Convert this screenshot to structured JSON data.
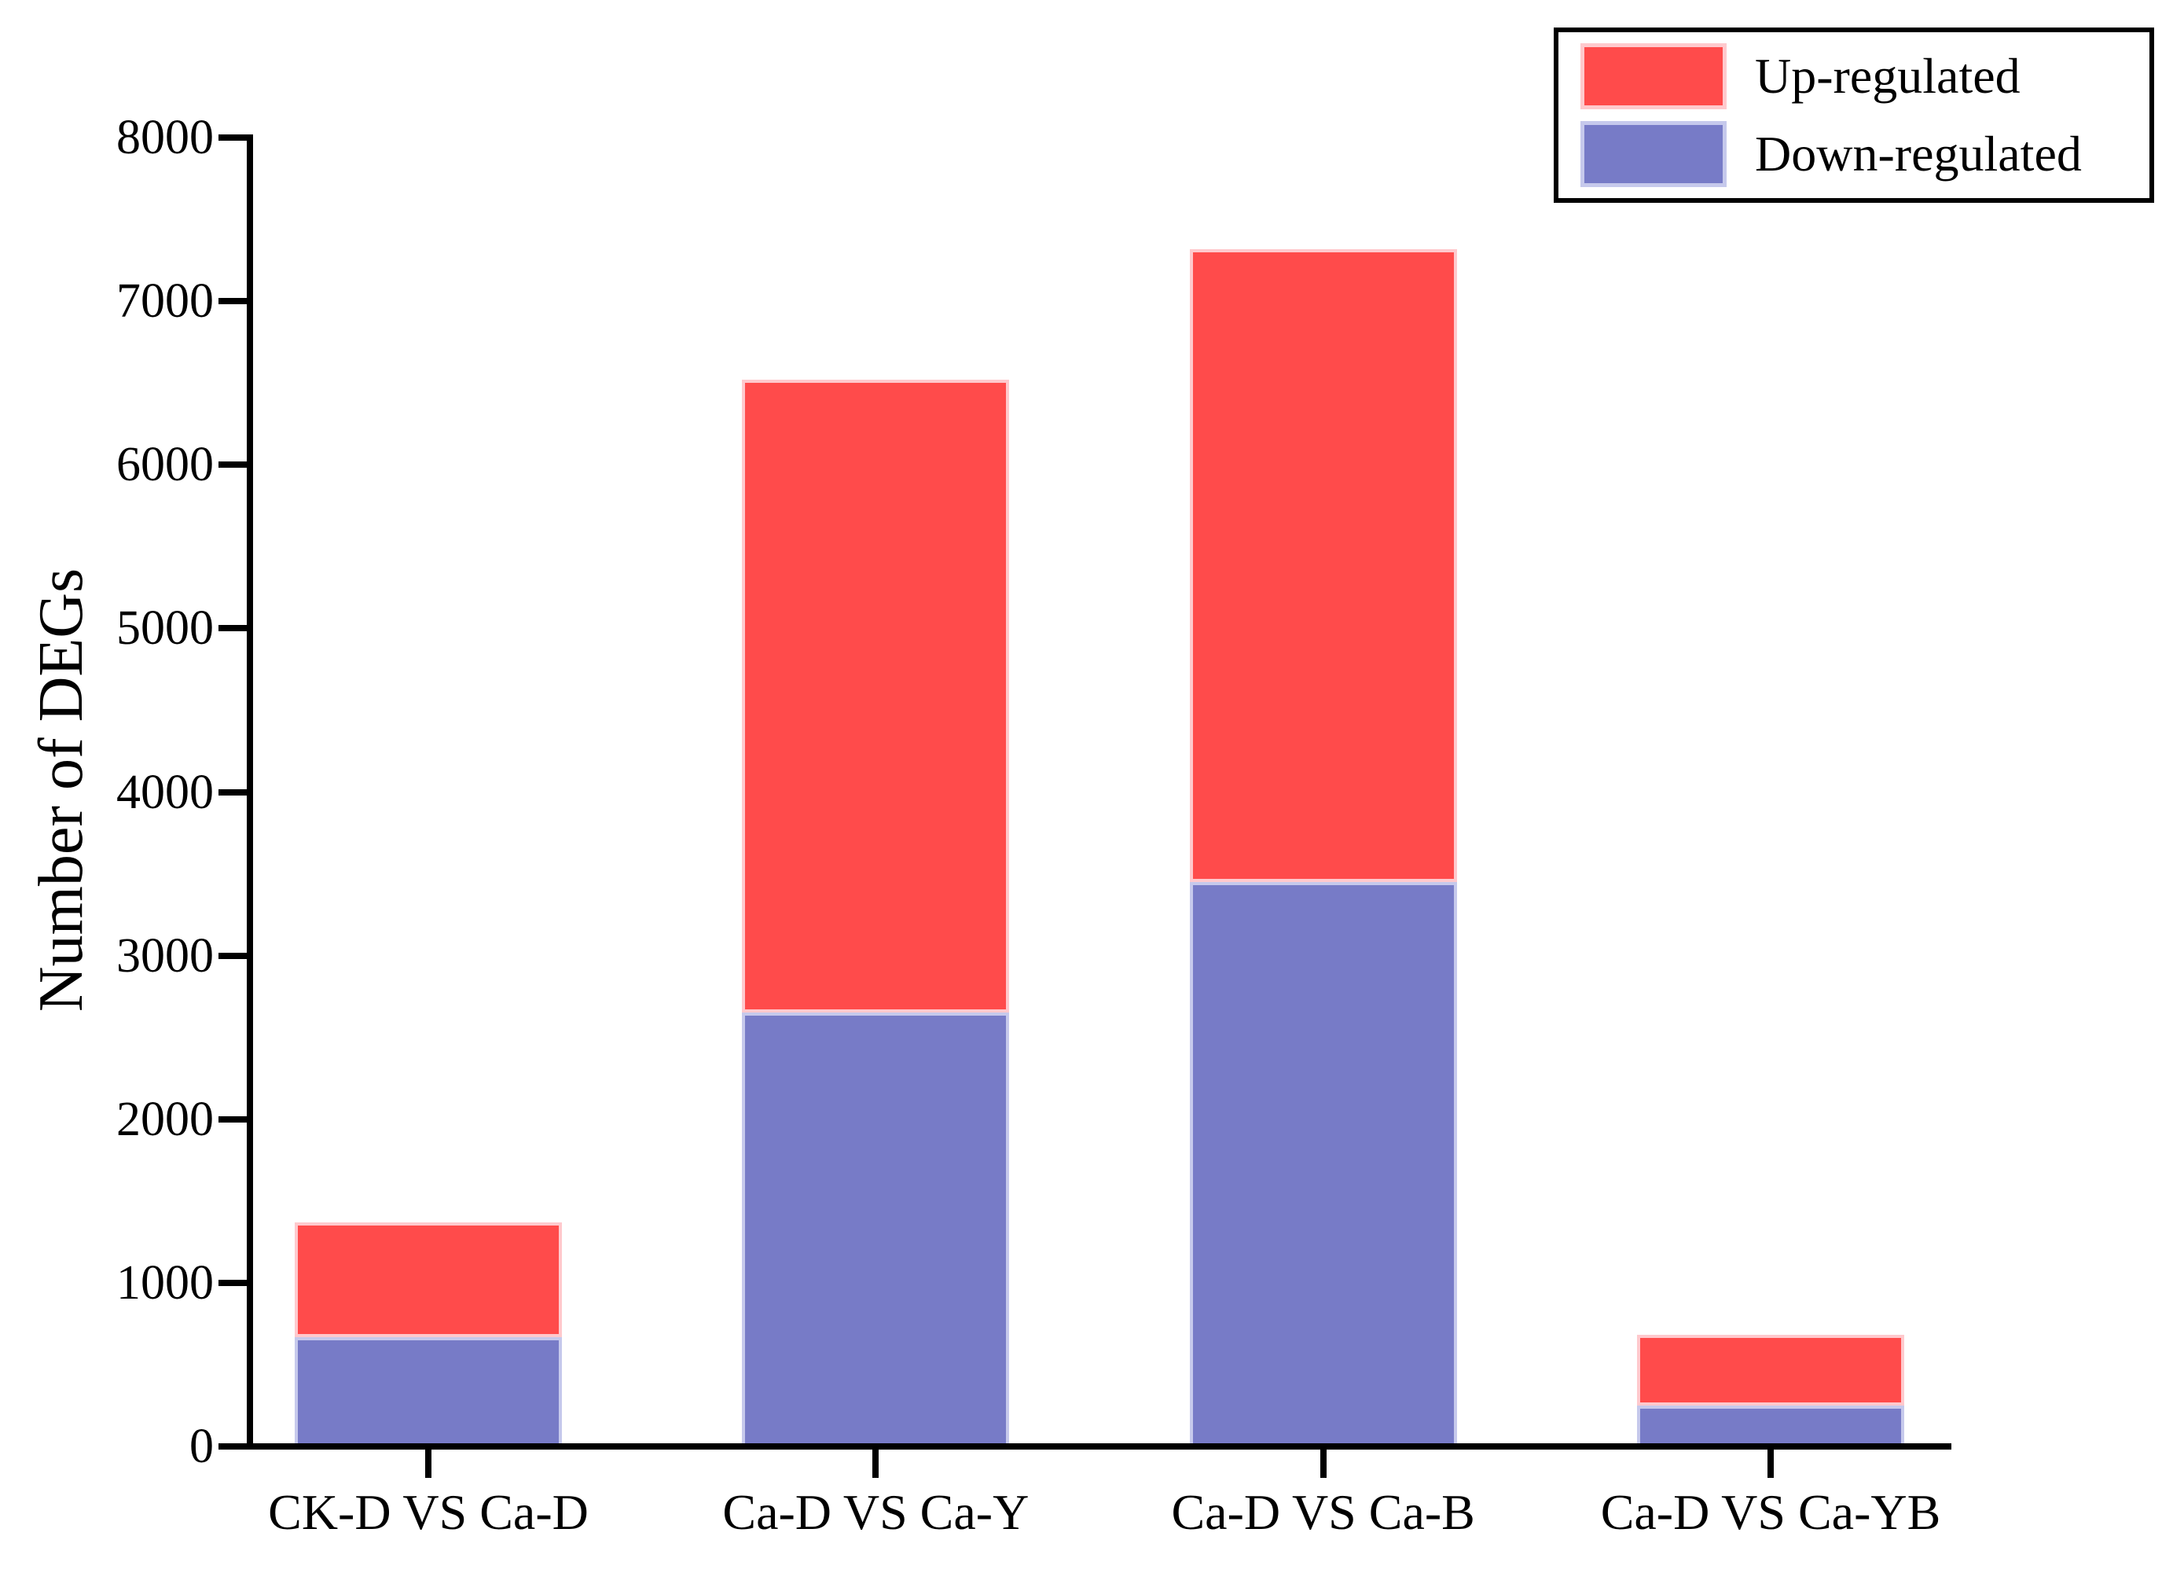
{
  "figure": {
    "background_color": "#ffffff",
    "axis_color": "#000000",
    "text_color": "#000000"
  },
  "y_axis": {
    "title": "Number of DEGs",
    "tick_labels": [
      "0",
      "1000",
      "2000",
      "3000",
      "4000",
      "5000",
      "6000",
      "7000",
      "8000"
    ]
  },
  "legend": {
    "items": [
      {
        "label": "Up-regulated"
      },
      {
        "label": "Down-regulated"
      }
    ]
  },
  "chart_data": {
    "type": "bar",
    "stacked": true,
    "title": "",
    "xlabel": "",
    "ylabel": "Number of DEGs",
    "categories": [
      "CK-D VS Ca-D",
      "Ca-D VS Ca-Y",
      "Ca-D VS Ca-B",
      "Ca-D VS Ca-YB"
    ],
    "series": [
      {
        "name": "Up-regulated",
        "stack_position": "top",
        "color": "#ff4b4b",
        "border_color": "#ffc9cd",
        "values": [
          700,
          3870,
          3870,
          430
        ]
      },
      {
        "name": "Down-regulated",
        "stack_position": "bottom",
        "color": "#777bc7",
        "border_color": "#c6c9ec",
        "values": [
          670,
          2650,
          3450,
          250
        ]
      }
    ],
    "totals": [
      1370,
      6520,
      7320,
      680
    ],
    "ylim": [
      0,
      8000
    ],
    "yticks": [
      0,
      1000,
      2000,
      3000,
      4000,
      5000,
      6000,
      7000,
      8000
    ],
    "grid": false,
    "legend_position": "top-right"
  }
}
